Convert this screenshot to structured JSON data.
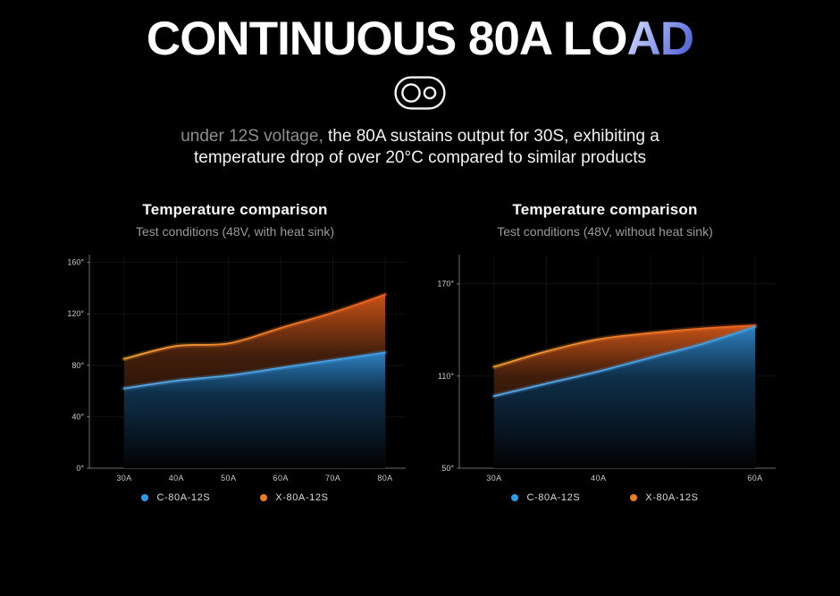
{
  "header": {
    "title": {
      "main": "CONTINUOUS 80A LO",
      "accent": "AD"
    },
    "badge_icon": "dual-circle-capsule",
    "subtitle": {
      "muted": "under 12S voltage,",
      "line1": " the 80A sustains output for 30S, exhibiting a",
      "line2": "temperature drop of over 20°C compared to similar products"
    }
  },
  "chart_data": [
    {
      "type": "area",
      "title": "Temperature comparison",
      "subtitle": "Test conditions (48V, with heat sink)",
      "x_tick_labels": [
        "30A",
        "40A",
        "50A",
        "60A",
        "70A",
        "80A"
      ],
      "y_ticks": [
        0,
        40,
        80,
        120,
        160
      ],
      "y_suffix": "°",
      "ylim": [
        0,
        166
      ],
      "grid": true,
      "legend_position": "bottom",
      "series": [
        {
          "name": "X-80A-12S",
          "color": "#ee5f1e",
          "line_start_color": "#f0a035",
          "fill_top": "#cf5518",
          "fill_mid": "#46200c",
          "values": [
            85,
            95,
            97,
            109,
            121,
            135
          ]
        },
        {
          "name": "C-80A-12S",
          "color": "#3f9ee6",
          "line_start_color": "#57a9e8",
          "fill_top": "#2f86c8",
          "fill_mid": "#0f3350",
          "values": [
            62,
            68,
            72,
            78,
            84,
            90
          ]
        }
      ],
      "legend": [
        {
          "name": "C-80A-12S",
          "color": "#2d9ce8"
        },
        {
          "name": "X-80A-12S",
          "color": "#f07d1d"
        }
      ]
    },
    {
      "type": "area",
      "title": "Temperature comparison",
      "subtitle": "Test conditions (48V, without heat sink)",
      "x_tick_labels": [
        "30A",
        "",
        "40A",
        "",
        "",
        "60A"
      ],
      "y_ticks": [
        50,
        110,
        170
      ],
      "y_suffix": "°",
      "ylim": [
        50,
        189
      ],
      "grid": true,
      "legend_position": "bottom",
      "series": [
        {
          "name": "X-80A-12S",
          "color": "#ee5f1e",
          "line_start_color": "#f0a035",
          "fill_top": "#cf5518",
          "fill_mid": "#46200c",
          "values": [
            116,
            126,
            134,
            138,
            141,
            143
          ]
        },
        {
          "name": "C-80A-12S",
          "color": "#3f9ee6",
          "line_start_color": "#57a9e8",
          "fill_top": "#2f86c8",
          "fill_mid": "#0f3350",
          "values": [
            97,
            105,
            113,
            122,
            131,
            142
          ]
        }
      ],
      "legend": [
        {
          "name": "C-80A-12S",
          "color": "#2d9ce8"
        },
        {
          "name": "X-80A-12S",
          "color": "#f07d1d"
        }
      ]
    }
  ]
}
